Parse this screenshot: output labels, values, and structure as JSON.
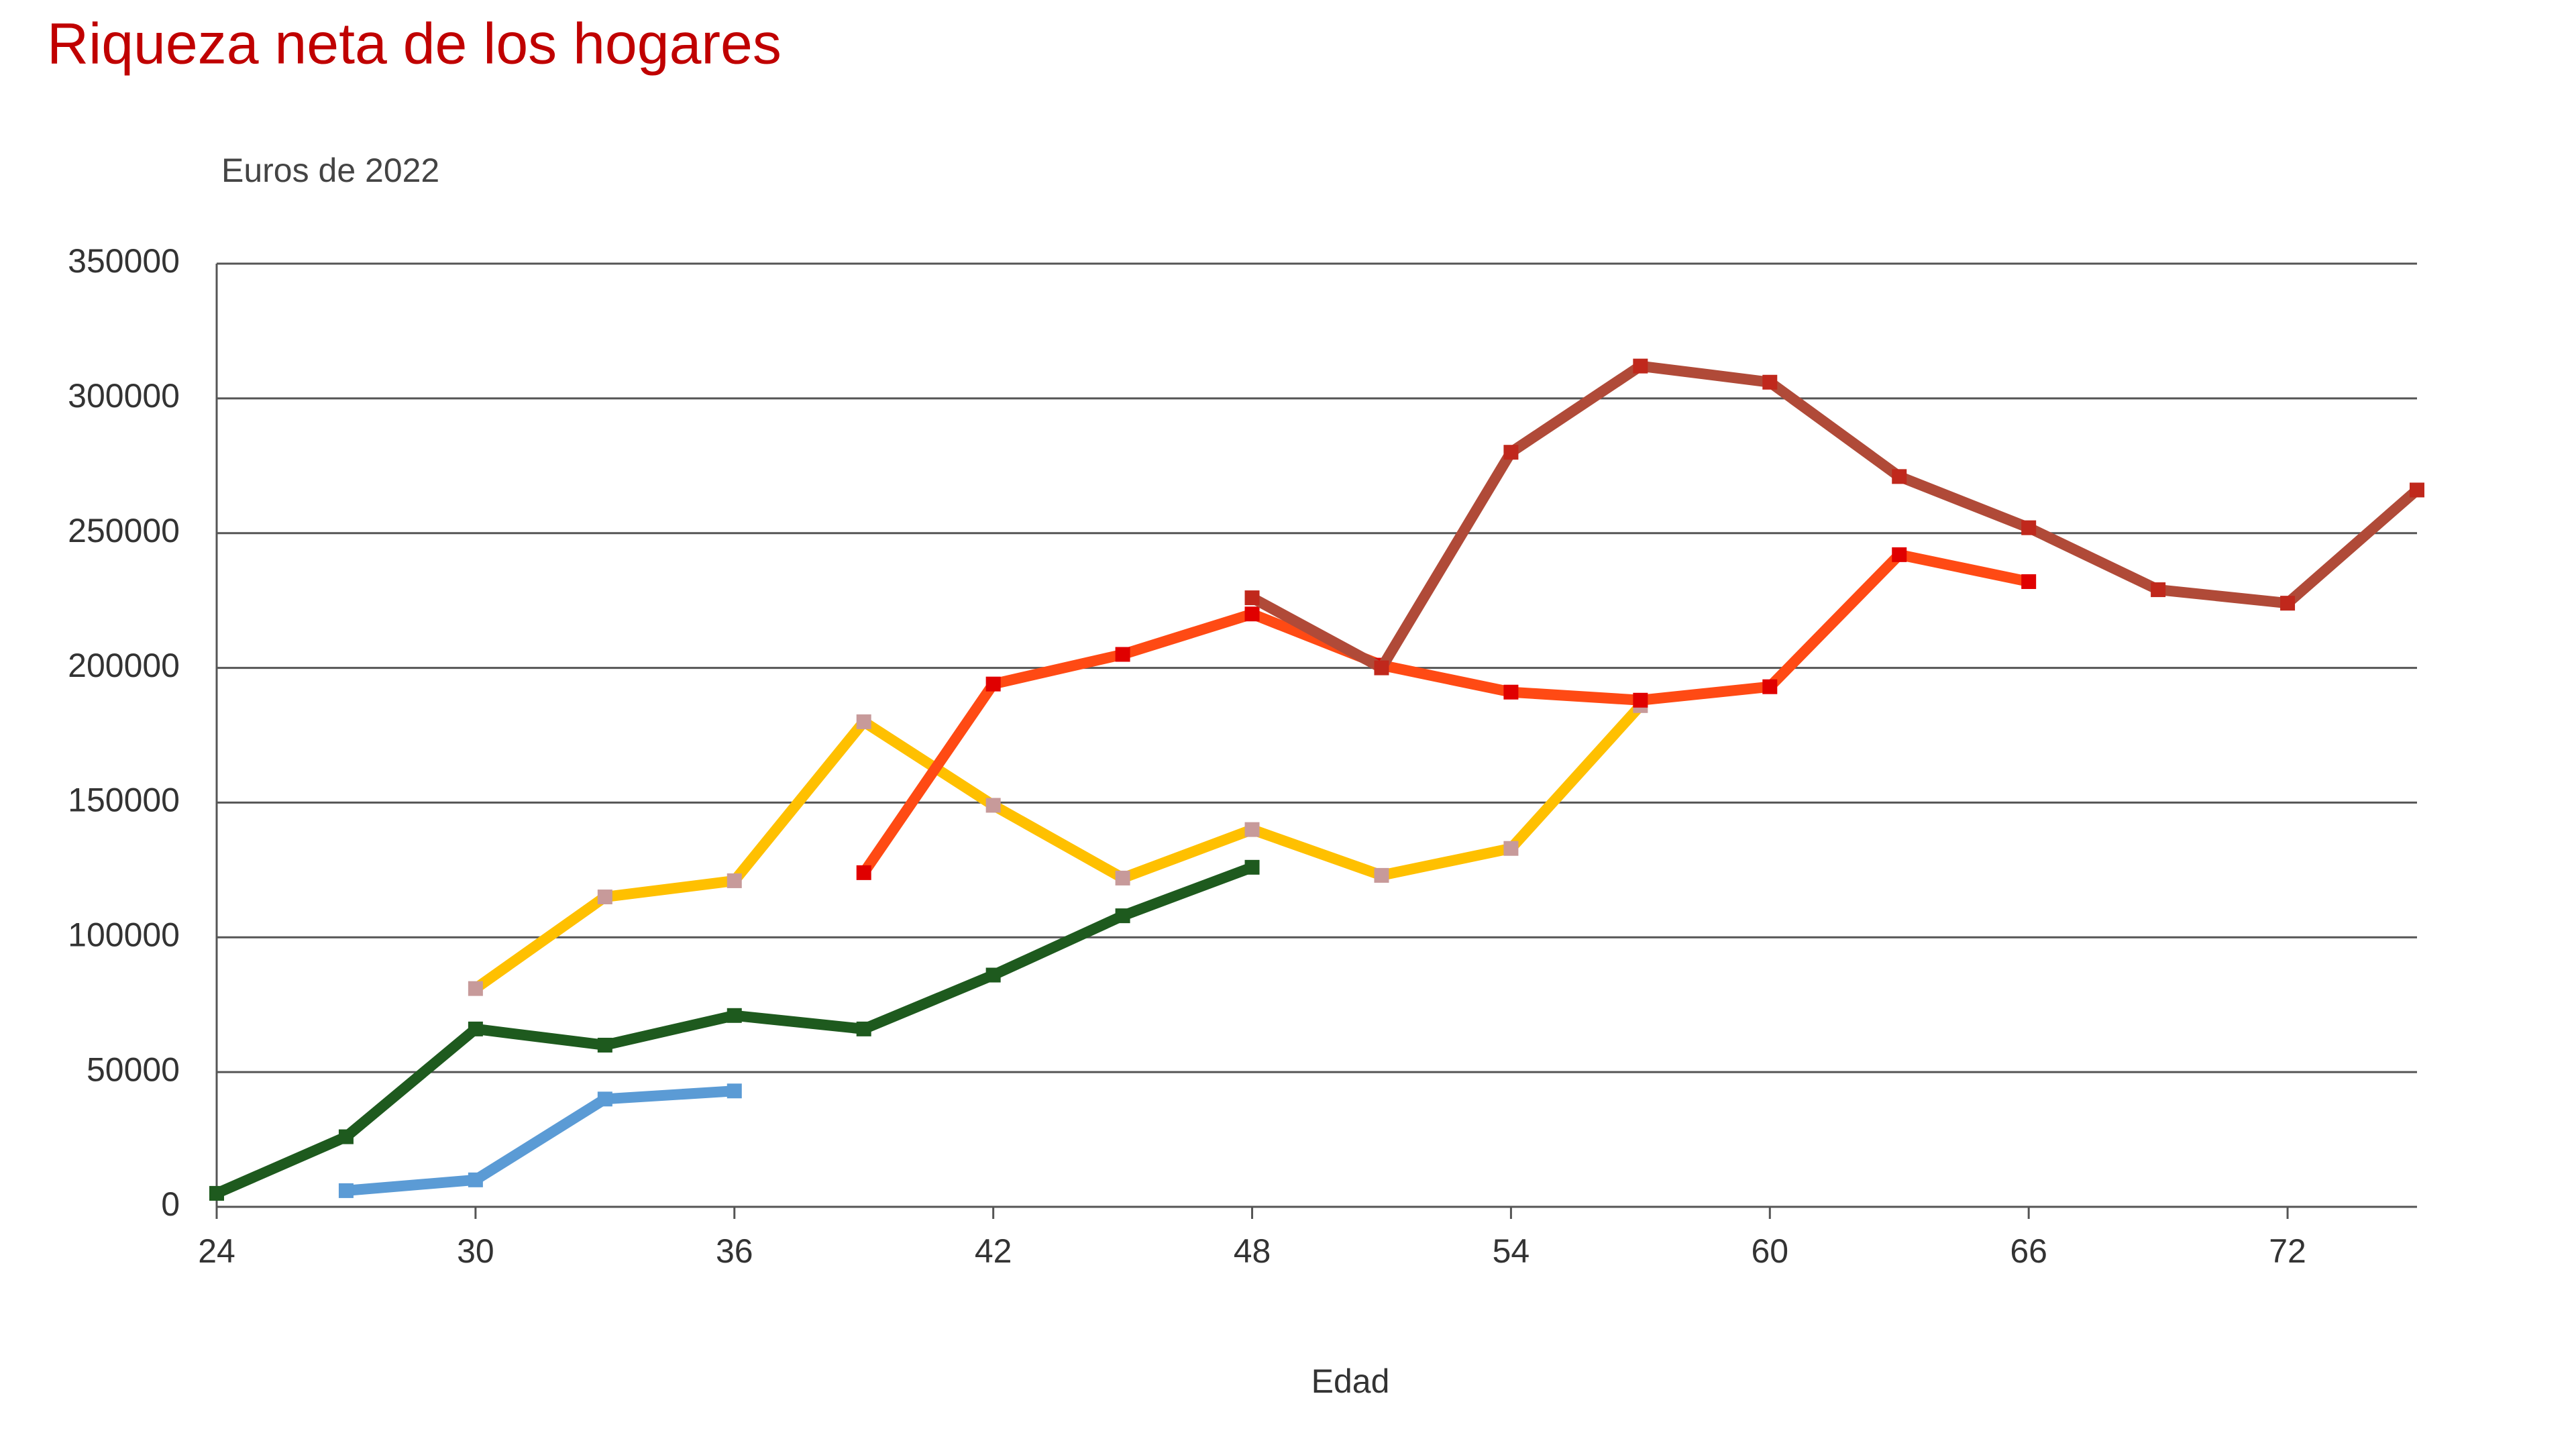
{
  "chart_data": {
    "type": "line",
    "title": "Riqueza neta de los hogares",
    "y_label": "Euros de 2022",
    "x_label": "Edad",
    "xlim": [
      24,
      75
    ],
    "xticks": [
      24,
      30,
      36,
      42,
      48,
      54,
      60,
      66,
      72
    ],
    "ylim": [
      0,
      350000
    ],
    "yticks": [
      0,
      50000,
      100000,
      150000,
      200000,
      250000,
      300000,
      350000
    ],
    "grid": true,
    "series": [
      {
        "color": "#5b9bd5",
        "marker_color": "#5b9bd5",
        "x": [
          27,
          30,
          33,
          36
        ],
        "values": [
          6000,
          10000,
          40000,
          43000
        ]
      },
      {
        "color": "#1e5a1e",
        "marker_color": "#1e5a1e",
        "x": [
          24,
          27,
          30,
          33,
          36,
          39,
          42,
          45,
          48
        ],
        "values": [
          5000,
          26000,
          66000,
          60000,
          71000,
          66000,
          86000,
          108000,
          126000
        ]
      },
      {
        "color": "#ffc000",
        "marker_color": "#c79a9a",
        "x": [
          30,
          33,
          36,
          39,
          42,
          45,
          48,
          51,
          54,
          57
        ],
        "values": [
          81000,
          115000,
          121000,
          180000,
          149000,
          122000,
          140000,
          123000,
          133000,
          186000
        ]
      },
      {
        "color": "#ff4a14",
        "marker_color": "#e00000",
        "x": [
          39,
          42,
          45,
          48,
          51,
          54,
          57,
          60,
          63,
          66
        ],
        "values": [
          124000,
          194000,
          205000,
          220000,
          201000,
          191000,
          188000,
          193000,
          242000,
          232000
        ]
      },
      {
        "color": "#b04a38",
        "marker_color": "#c0281c",
        "x": [
          48,
          51,
          54,
          57,
          60,
          63,
          66,
          69,
          72,
          75
        ],
        "values": [
          226000,
          200000,
          280000,
          312000,
          306000,
          271000,
          252000,
          229000,
          224000,
          266000
        ]
      }
    ]
  }
}
